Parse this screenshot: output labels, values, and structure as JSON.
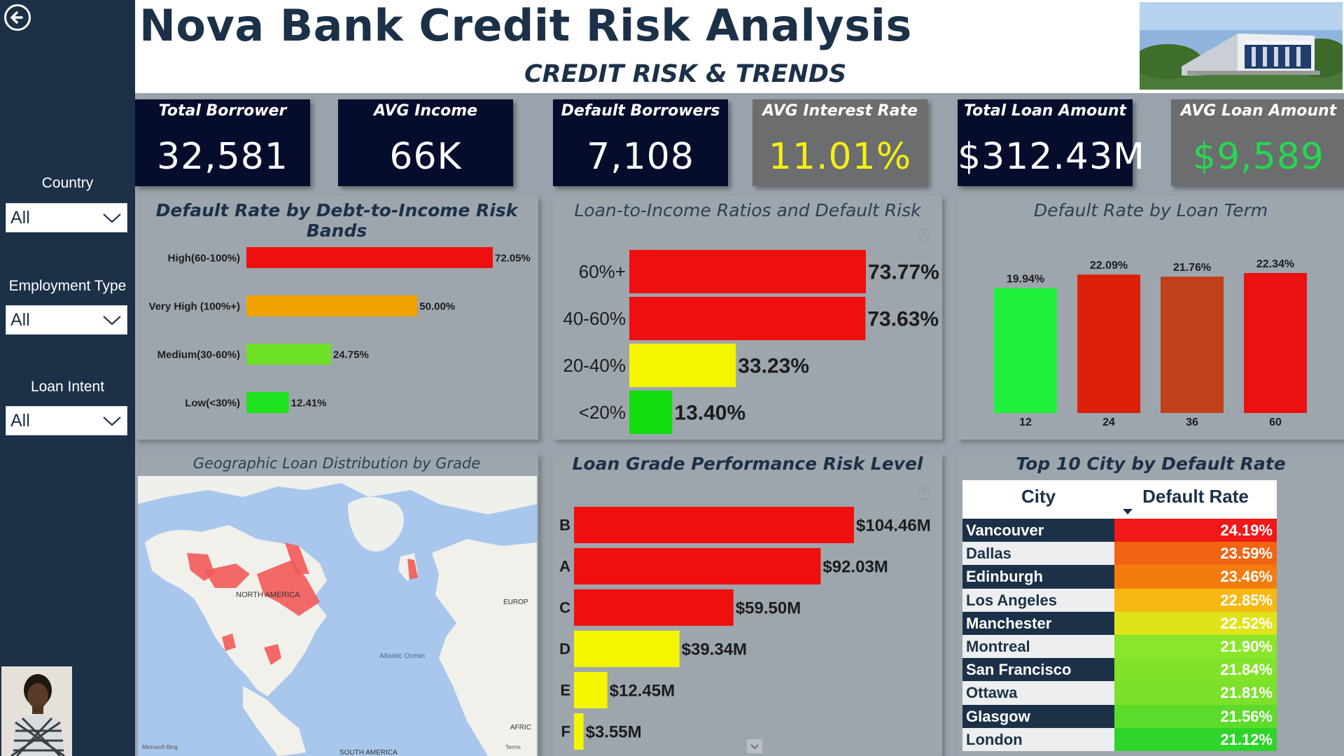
{
  "header": {
    "title": "Nova Bank Credit Risk Analysis",
    "subtitle": "CREDIT RISK & TRENDS"
  },
  "sidebar": {
    "filters": [
      {
        "label": "Country",
        "value": "All"
      },
      {
        "label": "Employment Type",
        "value": "All"
      },
      {
        "label": "Loan Intent",
        "value": "All"
      }
    ]
  },
  "kpis": [
    {
      "label": "Total Borrower",
      "value": "32,581",
      "value_color": "#ffffff"
    },
    {
      "label": "AVG Income",
      "value": "66K",
      "value_color": "#ffffff"
    },
    {
      "label": "Default Borrowers",
      "value": "7,108",
      "value_color": "#ffffff"
    },
    {
      "label": "AVG Interest Rate",
      "value": "11.01%",
      "value_color": "#f5ef15"
    },
    {
      "label": "Total Loan Amount",
      "value": "$312.43M",
      "value_color": "#ffffff"
    },
    {
      "label": "AVG Loan Amount",
      "value": "$9,589",
      "value_color": "#27d653"
    }
  ],
  "panels": {
    "dti": "Default Rate by Debt-to-Income Risk Bands",
    "lti": "Loan-to-Income Ratios and Default Risk",
    "term": "Default Rate by Loan Term",
    "geo": "Geographic Loan Distribution by Grade",
    "grade": "Loan Grade Performance Risk Level",
    "cities": "Top 10 City by Default Rate"
  },
  "map": {
    "labels": [
      "NORTH AMERICA",
      "Atlantic Ocean",
      "EUROP",
      "AFRIC",
      "SOUTH AMERICA"
    ],
    "attribution": "Microsoft Bing",
    "terms": "Terms"
  },
  "chart_data": [
    {
      "type": "bar",
      "title": "Default Rate by Debt-to-Income Risk Bands",
      "orientation": "horizontal",
      "categories": [
        "High(60-100%)",
        "Very High (100%+)",
        "Medium(30-60%)",
        "Low(<30%)"
      ],
      "values": [
        72.05,
        50.0,
        24.75,
        12.41
      ],
      "labels": [
        "72.05%",
        "50.00%",
        "24.75%",
        "12.41%"
      ],
      "colors": [
        "#f00f0f",
        "#f0a300",
        "#6ee026",
        "#1ee31e"
      ],
      "xlim": [
        0,
        72.05
      ]
    },
    {
      "type": "bar",
      "title": "Loan-to-Income Ratios and Default Risk",
      "orientation": "horizontal",
      "categories": [
        "60%+",
        "40-60%",
        "20-40%",
        "<20%"
      ],
      "values": [
        73.77,
        73.63,
        33.23,
        13.4
      ],
      "labels": [
        "73.77%",
        "73.63%",
        "33.23%",
        "13.40%"
      ],
      "colors": [
        "#f00f0f",
        "#f00f0f",
        "#f5f500",
        "#11dd11"
      ],
      "xlim": [
        0,
        73.77
      ]
    },
    {
      "type": "bar",
      "title": "Default Rate by Loan Term",
      "orientation": "vertical",
      "categories": [
        "12",
        "24",
        "36",
        "60"
      ],
      "values": [
        19.94,
        22.09,
        21.76,
        22.34
      ],
      "labels": [
        "19.94%",
        "22.09%",
        "21.76%",
        "22.34%"
      ],
      "colors": [
        "#1ef03c",
        "#dd200a",
        "#c0401a",
        "#ea1212"
      ],
      "ylim": [
        0,
        22.34
      ]
    },
    {
      "type": "bar",
      "title": "Loan Grade Performance Risk Level",
      "orientation": "horizontal",
      "categories": [
        "B",
        "A",
        "C",
        "D",
        "E",
        "F"
      ],
      "values": [
        104.46,
        92.03,
        59.5,
        39.34,
        12.45,
        3.55
      ],
      "labels": [
        "$104.46M",
        "$92.03M",
        "$59.50M",
        "$39.34M",
        "$12.45M",
        "$3.55M"
      ],
      "colors": [
        "#f00f0f",
        "#f00f0f",
        "#f00f0f",
        "#f5f500",
        "#f5f500",
        "#f5f500"
      ],
      "xlim": [
        0,
        104.46
      ]
    },
    {
      "type": "table",
      "title": "Top 10 City by Default Rate",
      "columns": [
        "City",
        "Default Rate"
      ],
      "rows": [
        {
          "city": "Vancouver",
          "rate": "24.19%",
          "color": "#f01818"
        },
        {
          "city": "Dallas",
          "rate": "23.59%",
          "color": "#f26411"
        },
        {
          "city": "Edinburgh",
          "rate": "23.46%",
          "color": "#f47c0e"
        },
        {
          "city": "Los Angeles",
          "rate": "22.85%",
          "color": "#f6b812"
        },
        {
          "city": "Manchester",
          "rate": "22.52%",
          "color": "#dfe41a"
        },
        {
          "city": "Montreal",
          "rate": "21.90%",
          "color": "#8ae62a"
        },
        {
          "city": "San Francisco",
          "rate": "21.84%",
          "color": "#82e22a"
        },
        {
          "city": "Ottawa",
          "rate": "21.81%",
          "color": "#7ce12a"
        },
        {
          "city": "Glasgow",
          "rate": "21.56%",
          "color": "#5ddb2a"
        },
        {
          "city": "London",
          "rate": "21.12%",
          "color": "#2fd42a"
        }
      ]
    }
  ]
}
